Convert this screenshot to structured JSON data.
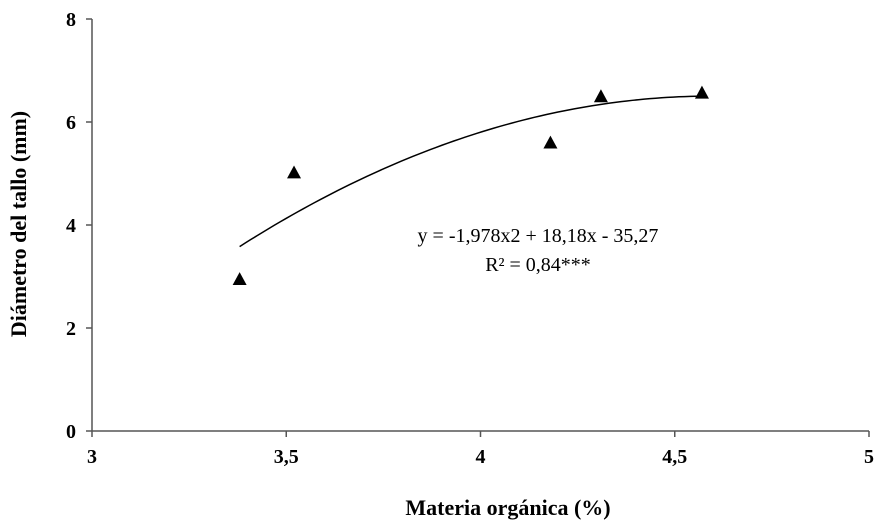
{
  "chart_data": {
    "type": "scatter",
    "xlabel": "Materia orgánica (%)",
    "ylabel": "Diámetro del tallo (mm)",
    "xlim": [
      3,
      5
    ],
    "ylim": [
      0,
      8
    ],
    "x_ticks": [
      {
        "value": 3,
        "label": "3"
      },
      {
        "value": 3.5,
        "label": "3,5"
      },
      {
        "value": 4,
        "label": "4"
      },
      {
        "value": 4.5,
        "label": "4,5"
      },
      {
        "value": 5,
        "label": "5"
      }
    ],
    "y_ticks": [
      {
        "value": 0,
        "label": "0"
      },
      {
        "value": 2,
        "label": "2"
      },
      {
        "value": 4,
        "label": "4"
      },
      {
        "value": 6,
        "label": "6"
      },
      {
        "value": 8,
        "label": "8"
      }
    ],
    "points": [
      {
        "x": 3.38,
        "y": 2.95
      },
      {
        "x": 3.52,
        "y": 5.02
      },
      {
        "x": 4.18,
        "y": 5.6
      },
      {
        "x": 4.31,
        "y": 6.5
      },
      {
        "x": 4.57,
        "y": 6.57
      }
    ],
    "marker": "triangle",
    "grid": false,
    "trendline": {
      "type": "polynomial-2",
      "coefficients": {
        "a": -1.978,
        "b": 18.18,
        "c": -35.27
      },
      "x_range": [
        3.38,
        4.57
      ],
      "equation_text": "y = -1,978x2 + 18,18x - 35,27",
      "r2_text": "R² = 0,84***"
    }
  }
}
